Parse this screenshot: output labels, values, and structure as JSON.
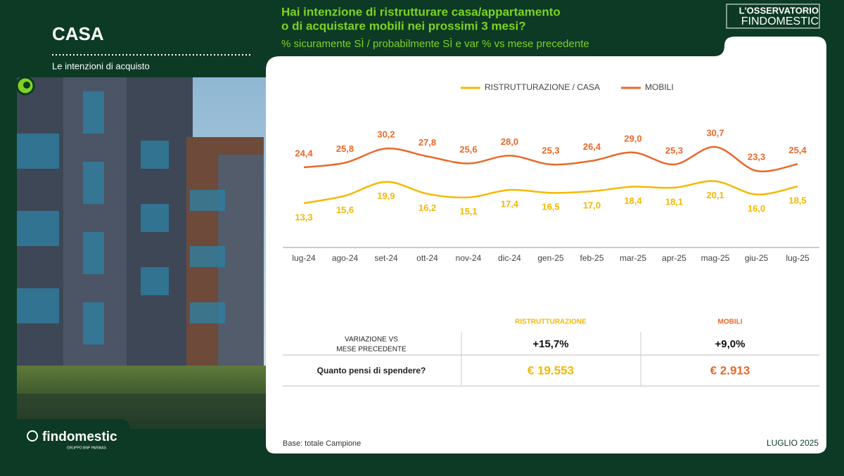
{
  "header": {
    "section": "CASA",
    "subtitle": "Le intenzioni di acquisto",
    "question_lines": [
      "Hai intenzione di ristrutturare casa/appartamento",
      "o di acquistare mobili nei prossimi 3 mesi?"
    ],
    "measure": "% sicuramente SÌ / probabilmente SÌ e var % vs mese precedente",
    "brand_lines": [
      "L'OSSERVATORIO",
      "FINDOMESTIC"
    ]
  },
  "chart_data": {
    "type": "line",
    "categories": [
      "lug-24",
      "ago-24",
      "set-24",
      "ott-24",
      "nov-24",
      "dic-24",
      "gen-25",
      "feb-25",
      "mar-25",
      "apr-25",
      "mag-25",
      "giu-25",
      "lug-25"
    ],
    "series": [
      {
        "name": "RISTRUTTURAZIONE / CASA",
        "color": "#f5b800",
        "values": [
          13.3,
          15.6,
          19.9,
          16.2,
          15.1,
          17.4,
          16.5,
          17.0,
          18.4,
          18.1,
          20.1,
          16.0,
          18.5
        ],
        "value_labels": [
          "13,3",
          "15,6",
          "19,9",
          "16,2",
          "15,1",
          "17,4",
          "16,5",
          "17,0",
          "18,4",
          "18,1",
          "20,1",
          "16,0",
          "18,5"
        ]
      },
      {
        "name": "MOBILI",
        "color": "#e8692a",
        "values": [
          24.4,
          25.8,
          30.2,
          27.8,
          25.6,
          28.0,
          25.3,
          26.4,
          29.0,
          25.3,
          30.7,
          23.3,
          25.4
        ],
        "value_labels": [
          "24,4",
          "25,8",
          "30,2",
          "27,8",
          "25,6",
          "28,0",
          "25,3",
          "26,4",
          "29,0",
          "25,3",
          "30,7",
          "23,3",
          "25,4"
        ]
      }
    ],
    "legend": "top"
  },
  "table": {
    "headers": [
      "RISTRUTTURAZIONE",
      "MOBILI"
    ],
    "rows": [
      {
        "label_lines": [
          "VARIAZIONE VS",
          "MESE PRECEDENTE"
        ],
        "cells": [
          "+15,7%",
          "+9,0%"
        ]
      },
      {
        "label_lines": [
          "Quanto pensi di spendere?"
        ],
        "cells": [
          "€ 19.553",
          "€ 2.913"
        ]
      }
    ]
  },
  "footer": {
    "base": "Base: totale Campione",
    "date": "LUGLIO 2025",
    "logo": "findomestic",
    "logo_sub": "GRUPPO BNP PARIBAS"
  }
}
